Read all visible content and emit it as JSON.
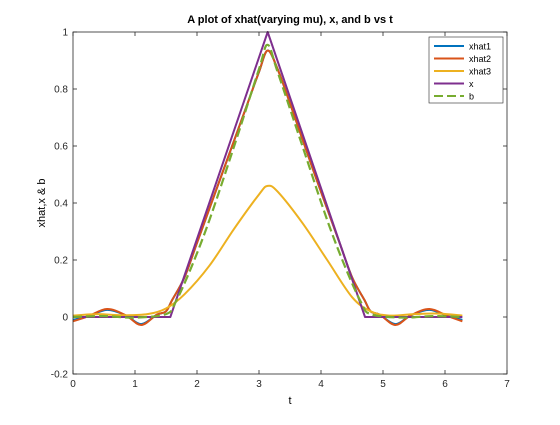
{
  "chart_data": {
    "type": "line",
    "title": "A plot of xhat(varying mu), x, and b vs t",
    "xlabel": "t",
    "ylabel": "xhat,x & b",
    "xlim": [
      0,
      7
    ],
    "ylim": [
      -0.2,
      1
    ],
    "xticks": [
      "0",
      "1",
      "2",
      "3",
      "4",
      "5",
      "6",
      "7"
    ],
    "yticks": [
      "-0.2",
      "0",
      "0.2",
      "0.4",
      "0.6",
      "0.8",
      "1"
    ],
    "grid": false,
    "legend_position": "top-right",
    "series": [
      {
        "name": "xhat1",
        "color": "#0072bd",
        "style": "solid",
        "x": [
          0,
          0.25,
          0.55,
          0.85,
          1.1,
          1.35,
          1.5,
          1.6,
          1.8,
          2.0,
          2.4,
          2.8,
          3.0,
          3.14,
          3.3,
          3.5,
          3.9,
          4.3,
          4.5,
          4.7,
          4.8,
          4.95,
          5.2,
          5.45,
          5.75,
          6.05,
          6.28
        ],
        "y": [
          -0.01,
          0.003,
          0.025,
          0.006,
          -0.025,
          0.008,
          0.02,
          0.06,
          0.14,
          0.26,
          0.5,
          0.74,
          0.86,
          0.935,
          0.87,
          0.75,
          0.5,
          0.26,
          0.14,
          0.06,
          0.02,
          0.008,
          -0.025,
          0.006,
          0.025,
          0.003,
          -0.01
        ]
      },
      {
        "name": "xhat2",
        "color": "#d95319",
        "style": "solid",
        "x": [
          0,
          0.25,
          0.55,
          0.85,
          1.1,
          1.35,
          1.5,
          1.6,
          1.8,
          2.0,
          2.4,
          2.8,
          3.0,
          3.14,
          3.3,
          3.5,
          3.9,
          4.3,
          4.5,
          4.7,
          4.8,
          4.95,
          5.2,
          5.45,
          5.75,
          6.05,
          6.28
        ],
        "y": [
          -0.015,
          0.003,
          0.028,
          0.006,
          -0.028,
          0.008,
          0.02,
          0.06,
          0.14,
          0.26,
          0.5,
          0.74,
          0.86,
          0.935,
          0.87,
          0.75,
          0.5,
          0.26,
          0.14,
          0.06,
          0.02,
          0.008,
          -0.028,
          0.006,
          0.028,
          0.003,
          -0.015
        ]
      },
      {
        "name": "xhat3",
        "color": "#edb120",
        "style": "solid",
        "x": [
          0,
          0.4,
          0.8,
          1.2,
          1.5,
          1.8,
          2.2,
          2.6,
          3.0,
          3.14,
          3.3,
          3.7,
          4.1,
          4.5,
          4.8,
          5.1,
          5.5,
          5.9,
          6.28
        ],
        "y": [
          0.005,
          0.01,
          0.006,
          0.01,
          0.03,
          0.08,
          0.18,
          0.31,
          0.43,
          0.46,
          0.44,
          0.33,
          0.2,
          0.07,
          0.02,
          0.005,
          0.01,
          0.012,
          0.005
        ]
      },
      {
        "name": "x",
        "color": "#7e2f8e",
        "style": "solid",
        "x": [
          0,
          1.57,
          3.14,
          4.71,
          6.28
        ],
        "y": [
          0,
          0,
          1,
          0,
          0
        ]
      },
      {
        "name": "b",
        "color": "#77ac30",
        "style": "dashed",
        "x": [
          0,
          0.5,
          1.0,
          1.5,
          1.65,
          1.9,
          2.2,
          2.6,
          3.0,
          3.14,
          3.3,
          3.7,
          4.1,
          4.4,
          4.65,
          4.8,
          5.3,
          5.8,
          6.28
        ],
        "y": [
          0,
          0.003,
          -0.002,
          0.01,
          0.05,
          0.17,
          0.34,
          0.6,
          0.87,
          0.955,
          0.86,
          0.6,
          0.34,
          0.17,
          0.05,
          0.01,
          -0.002,
          0.003,
          0
        ]
      }
    ]
  }
}
